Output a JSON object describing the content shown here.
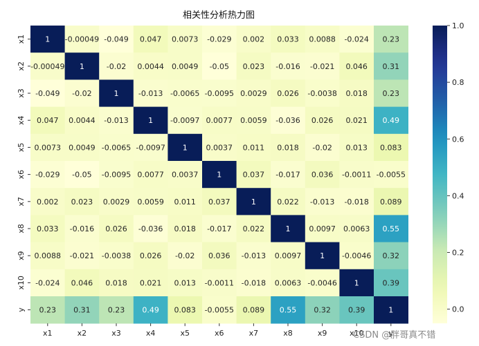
{
  "chart_data": {
    "type": "heatmap",
    "title": "相关性分析热力图",
    "x_labels": [
      "x1",
      "x2",
      "x3",
      "x4",
      "x5",
      "x6",
      "x7",
      "x8",
      "x9",
      "x10",
      "y"
    ],
    "y_labels": [
      "x1",
      "x2",
      "x3",
      "x4",
      "x5",
      "x6",
      "x7",
      "x8",
      "x9",
      "x10",
      "y"
    ],
    "cell_labels": [
      [
        "1",
        "-0.00049",
        "-0.049",
        "0.047",
        "0.0073",
        "-0.029",
        "0.002",
        "0.033",
        "0.0088",
        "-0.024",
        "0.23"
      ],
      [
        "-0.00049",
        "1",
        "-0.02",
        "0.0044",
        "0.0049",
        "-0.05",
        "0.023",
        "-0.016",
        "-0.021",
        "0.046",
        "0.31"
      ],
      [
        "-0.049",
        "-0.02",
        "1",
        "-0.013",
        "-0.0065",
        "-0.0095",
        "0.0029",
        "0.026",
        "-0.0038",
        "0.018",
        "0.23"
      ],
      [
        "0.047",
        "0.0044",
        "-0.013",
        "1",
        "-0.0097",
        "0.0077",
        "0.0059",
        "-0.036",
        "0.026",
        "0.021",
        "0.49"
      ],
      [
        "0.0073",
        "0.0049",
        "-0.0065",
        "-0.0097",
        "1",
        "0.0037",
        "0.011",
        "0.018",
        "-0.02",
        "0.013",
        "0.083"
      ],
      [
        "-0.029",
        "-0.05",
        "-0.0095",
        "0.0077",
        "0.0037",
        "1",
        "0.037",
        "-0.017",
        "0.036",
        "-0.0011",
        "-0.0055"
      ],
      [
        "0.002",
        "0.023",
        "0.0029",
        "0.0059",
        "0.011",
        "0.037",
        "1",
        "0.022",
        "-0.013",
        "-0.018",
        "0.089"
      ],
      [
        "0.033",
        "-0.016",
        "0.026",
        "-0.036",
        "0.018",
        "-0.017",
        "0.022",
        "1",
        "0.0097",
        "0.0063",
        "0.55"
      ],
      [
        "0.0088",
        "-0.021",
        "-0.0038",
        "0.026",
        "-0.02",
        "0.036",
        "-0.013",
        "0.0097",
        "1",
        "-0.0046",
        "0.32"
      ],
      [
        "-0.024",
        "0.046",
        "0.018",
        "0.021",
        "0.013",
        "-0.0011",
        "-0.018",
        "0.0063",
        "-0.0046",
        "1",
        "0.39"
      ],
      [
        "0.23",
        "0.31",
        "0.23",
        "0.49",
        "0.083",
        "-0.0055",
        "0.089",
        "0.55",
        "0.32",
        "0.39",
        "1"
      ]
    ],
    "colorbar": {
      "ticks": [
        "0.0",
        "0.2",
        "0.4",
        "0.6",
        "0.8",
        "1.0"
      ],
      "range": [
        -0.05,
        1.0
      ],
      "colormap": "YlGnBu"
    },
    "grid": false
  },
  "watermark": "CSDN @胖哥真不错"
}
